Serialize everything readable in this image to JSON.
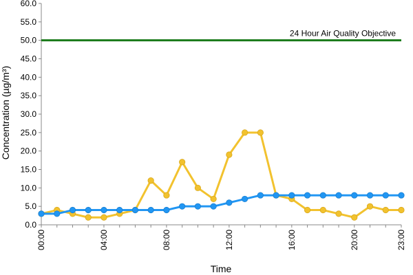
{
  "chart_data": {
    "type": "line",
    "xlabel": "Time",
    "ylabel": "Concentration (µg/m³)",
    "ylim": [
      0,
      60
    ],
    "y_ticks": [
      "0.0",
      "5.0",
      "10.0",
      "15.0",
      "20.0",
      "25.0",
      "30.0",
      "35.0",
      "40.0",
      "45.0",
      "50.0",
      "55.0",
      "60.0"
    ],
    "x_tick_labels": [
      "00:00",
      "04:00",
      "08:00",
      "12:00",
      "16:00",
      "20:00",
      "23:00"
    ],
    "x_tick_hours": [
      0,
      4,
      8,
      12,
      16,
      20,
      23
    ],
    "x": [
      0,
      1,
      2,
      3,
      4,
      5,
      6,
      7,
      8,
      9,
      10,
      11,
      12,
      13,
      14,
      15,
      16,
      17,
      18,
      19,
      20,
      21,
      22,
      23
    ],
    "grid": false,
    "series": [
      {
        "color": "#f2c22e",
        "values": [
          3,
          4,
          3,
          2,
          2,
          3,
          4,
          12,
          8,
          17,
          10,
          7,
          19,
          25,
          25,
          8,
          7,
          4,
          4,
          3,
          2,
          5,
          4,
          4
        ]
      },
      {
        "color": "#2196f3",
        "values": [
          3,
          3,
          4,
          4,
          4,
          4,
          4,
          4,
          4,
          5,
          5,
          5,
          6,
          7,
          8,
          8,
          8,
          8,
          8,
          8,
          8,
          8,
          8,
          8
        ]
      }
    ],
    "reference_line": {
      "label": "24 Hour Air Quality Objective",
      "value": 50,
      "color": "#1a7a1a"
    }
  }
}
